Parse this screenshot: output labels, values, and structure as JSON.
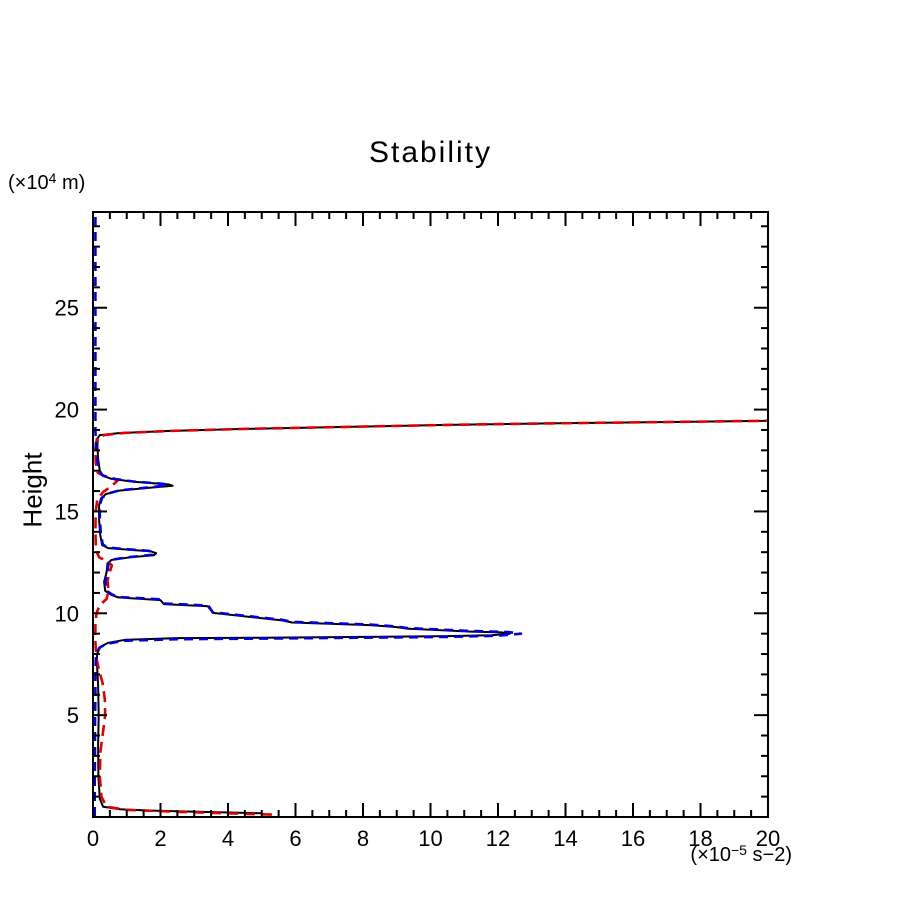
{
  "page": {
    "background": "#ffffff"
  },
  "chart_data": {
    "type": "line",
    "title": "Stability",
    "ylabel": "Height",
    "y_unit": {
      "pre": "(×10",
      "sup": "4",
      "post": " m)"
    },
    "x_unit": {
      "pre": "(×10",
      "sup": "−5",
      "post": " s−2)"
    },
    "xlim": [
      0,
      20
    ],
    "ylim": [
      0,
      29.7
    ],
    "x_major_ticks": [
      0,
      2,
      4,
      6,
      8,
      10,
      12,
      14,
      16,
      18,
      20
    ],
    "x_tick_labels": [
      "0",
      "2",
      "4",
      "6",
      "8",
      "10",
      "12",
      "14",
      "16",
      "18",
      "20"
    ],
    "x_minor_step": 0.5,
    "y_major_ticks": [
      5,
      10,
      15,
      20,
      25
    ],
    "y_tick_labels": [
      "5",
      "10",
      "15",
      "20",
      "25"
    ],
    "y_minor_step": 1,
    "grid": false,
    "legend": "none",
    "frame_color": "#000000",
    "series": [
      {
        "name": "black-solid",
        "color": "#000000",
        "style": "solid",
        "width": 2,
        "points": [
          [
            5.0,
            0.18
          ],
          [
            2.0,
            0.3
          ],
          [
            0.8,
            0.38
          ],
          [
            0.3,
            0.5
          ],
          [
            0.2,
            0.9
          ],
          [
            0.16,
            2.0
          ],
          [
            0.15,
            3.5
          ],
          [
            0.17,
            5.0
          ],
          [
            0.15,
            6.5
          ],
          [
            0.12,
            7.5
          ],
          [
            0.12,
            8.0
          ],
          [
            0.22,
            8.35
          ],
          [
            0.45,
            8.55
          ],
          [
            0.95,
            8.7
          ],
          [
            2.5,
            8.78
          ],
          [
            5.0,
            8.8
          ],
          [
            8.0,
            8.84
          ],
          [
            10.5,
            8.88
          ],
          [
            11.8,
            8.92
          ],
          [
            12.35,
            9.0
          ],
          [
            12.1,
            9.06
          ],
          [
            11.2,
            9.1
          ],
          [
            9.3,
            9.25
          ],
          [
            9.0,
            9.32
          ],
          [
            8.2,
            9.42
          ],
          [
            5.9,
            9.55
          ],
          [
            5.6,
            9.65
          ],
          [
            4.1,
            9.92
          ],
          [
            3.55,
            10.02
          ],
          [
            3.4,
            10.35
          ],
          [
            2.1,
            10.45
          ],
          [
            2.0,
            10.65
          ],
          [
            0.75,
            10.78
          ],
          [
            0.55,
            10.9
          ],
          [
            0.36,
            11.1
          ],
          [
            0.33,
            11.55
          ],
          [
            0.4,
            12.0
          ],
          [
            0.43,
            12.45
          ],
          [
            0.55,
            12.62
          ],
          [
            1.1,
            12.75
          ],
          [
            1.8,
            12.85
          ],
          [
            1.87,
            12.95
          ],
          [
            1.7,
            13.05
          ],
          [
            1.05,
            13.12
          ],
          [
            0.45,
            13.2
          ],
          [
            0.27,
            13.35
          ],
          [
            0.21,
            13.9
          ],
          [
            0.18,
            14.6
          ],
          [
            0.18,
            15.3
          ],
          [
            0.24,
            15.65
          ],
          [
            0.38,
            15.85
          ],
          [
            0.75,
            16.02
          ],
          [
            1.6,
            16.15
          ],
          [
            2.36,
            16.26
          ],
          [
            2.25,
            16.33
          ],
          [
            1.25,
            16.45
          ],
          [
            0.55,
            16.6
          ],
          [
            0.3,
            16.75
          ],
          [
            0.2,
            17.0
          ],
          [
            0.15,
            17.6
          ],
          [
            0.13,
            18.2
          ],
          [
            0.14,
            18.6
          ],
          [
            0.2,
            18.75
          ],
          [
            0.8,
            18.85
          ],
          [
            2.2,
            18.95
          ],
          [
            4.5,
            19.05
          ],
          [
            7.5,
            19.15
          ],
          [
            10.5,
            19.25
          ],
          [
            13.5,
            19.32
          ],
          [
            16.5,
            19.38
          ],
          [
            20.0,
            19.45
          ]
        ]
      },
      {
        "name": "red-dashed",
        "color": "#e00000",
        "style": "dashed",
        "dash": "11 6",
        "width": 2.6,
        "points": [
          [
            5.3,
            0.12
          ],
          [
            2.6,
            0.25
          ],
          [
            1.0,
            0.35
          ],
          [
            0.4,
            0.5
          ],
          [
            0.25,
            1.0
          ],
          [
            0.2,
            2.0
          ],
          [
            0.22,
            3.2
          ],
          [
            0.3,
            4.2
          ],
          [
            0.36,
            5.0
          ],
          [
            0.35,
            5.8
          ],
          [
            0.28,
            6.6
          ],
          [
            0.18,
            7.2
          ],
          [
            0.1,
            7.8
          ],
          [
            0.07,
            8.6
          ],
          [
            0.07,
            9.4
          ],
          [
            0.1,
            10.0
          ],
          [
            0.2,
            10.4
          ],
          [
            0.4,
            10.7
          ],
          [
            0.46,
            11.1
          ],
          [
            0.43,
            11.6
          ],
          [
            0.5,
            12.05
          ],
          [
            0.56,
            12.35
          ],
          [
            0.42,
            12.55
          ],
          [
            0.18,
            12.75
          ],
          [
            0.09,
            13.1
          ],
          [
            0.07,
            14.0
          ],
          [
            0.08,
            15.0
          ],
          [
            0.13,
            15.6
          ],
          [
            0.3,
            15.95
          ],
          [
            0.55,
            16.25
          ],
          [
            0.72,
            16.5
          ],
          [
            0.62,
            16.62
          ],
          [
            0.32,
            16.75
          ],
          [
            0.14,
            16.9
          ],
          [
            0.08,
            17.4
          ],
          [
            0.07,
            18.1
          ],
          [
            0.12,
            18.6
          ],
          [
            0.35,
            18.76
          ],
          [
            0.9,
            18.85
          ],
          [
            2.2,
            18.95
          ],
          [
            4.5,
            19.05
          ],
          [
            7.5,
            19.15
          ],
          [
            10.5,
            19.25
          ],
          [
            13.5,
            19.32
          ],
          [
            16.5,
            19.38
          ],
          [
            20.0,
            19.45
          ]
        ]
      },
      {
        "name": "blue-dashed",
        "color": "#0000dd",
        "style": "dashed",
        "dash": "9 6",
        "width": 2.6,
        "points": [
          [
            0.05,
            0.05
          ],
          [
            0.05,
            1.5
          ],
          [
            0.06,
            3.0
          ],
          [
            0.06,
            4.5
          ],
          [
            0.07,
            6.0
          ],
          [
            0.07,
            7.2
          ],
          [
            0.09,
            7.9
          ],
          [
            0.18,
            8.3
          ],
          [
            0.4,
            8.5
          ],
          [
            0.9,
            8.65
          ],
          [
            2.5,
            8.73
          ],
          [
            5.0,
            8.76
          ],
          [
            8.0,
            8.8
          ],
          [
            10.5,
            8.84
          ],
          [
            12.0,
            8.9
          ],
          [
            12.68,
            9.0
          ],
          [
            12.3,
            9.08
          ],
          [
            11.2,
            9.13
          ],
          [
            9.3,
            9.28
          ],
          [
            9.0,
            9.35
          ],
          [
            8.2,
            9.45
          ],
          [
            5.9,
            9.58
          ],
          [
            5.6,
            9.68
          ],
          [
            4.1,
            9.95
          ],
          [
            3.55,
            10.05
          ],
          [
            3.42,
            10.38
          ],
          [
            2.12,
            10.48
          ],
          [
            2.02,
            10.68
          ],
          [
            0.76,
            10.8
          ],
          [
            0.57,
            10.92
          ],
          [
            0.39,
            11.12
          ],
          [
            0.36,
            11.57
          ],
          [
            0.43,
            12.02
          ],
          [
            0.46,
            12.47
          ],
          [
            0.58,
            12.64
          ],
          [
            1.12,
            12.77
          ],
          [
            1.78,
            12.87
          ],
          [
            1.8,
            12.97
          ],
          [
            1.65,
            13.07
          ],
          [
            1.05,
            13.14
          ],
          [
            0.46,
            13.22
          ],
          [
            0.29,
            13.37
          ],
          [
            0.23,
            13.92
          ],
          [
            0.2,
            14.62
          ],
          [
            0.2,
            15.32
          ],
          [
            0.27,
            15.67
          ],
          [
            0.42,
            15.87
          ],
          [
            0.8,
            16.04
          ],
          [
            1.6,
            16.17
          ],
          [
            2.2,
            16.28
          ],
          [
            2.1,
            16.35
          ],
          [
            1.2,
            16.47
          ],
          [
            0.52,
            16.62
          ],
          [
            0.28,
            16.77
          ],
          [
            0.18,
            17.02
          ],
          [
            0.12,
            17.62
          ],
          [
            0.09,
            18.2
          ],
          [
            0.07,
            19.0
          ],
          [
            0.07,
            20.5
          ],
          [
            0.07,
            22.0
          ],
          [
            0.07,
            23.5
          ],
          [
            0.07,
            25.0
          ],
          [
            0.07,
            26.5
          ],
          [
            0.07,
            28.0
          ],
          [
            0.07,
            29.6
          ]
        ]
      }
    ]
  }
}
